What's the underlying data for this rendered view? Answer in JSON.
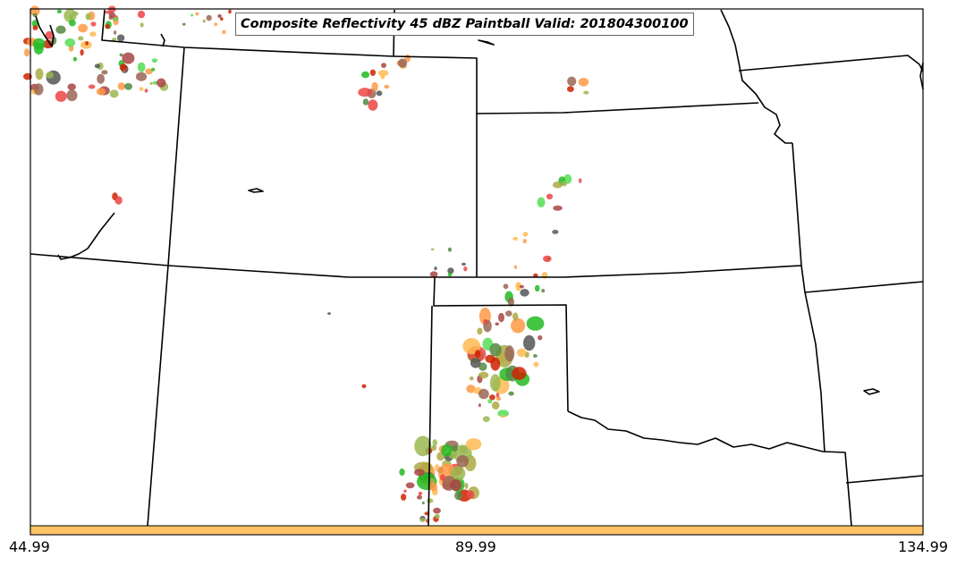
{
  "map": {
    "title": "Composite Reflectivity 45 dBZ Paintball Valid: 201804300100"
  },
  "colorbar": {
    "color": "#ffc466",
    "tick_labels": [
      "44.99",
      "89.99",
      "134.99"
    ]
  },
  "colors": {
    "boundary": "#000000",
    "paintball": [
      "#ee4444",
      "#ff9944",
      "#ffbb55",
      "#aaaa44",
      "#99b850",
      "#55dd55",
      "#22bb22",
      "#558844",
      "#996655",
      "#aa4444",
      "#555555",
      "#cc2200"
    ]
  }
}
